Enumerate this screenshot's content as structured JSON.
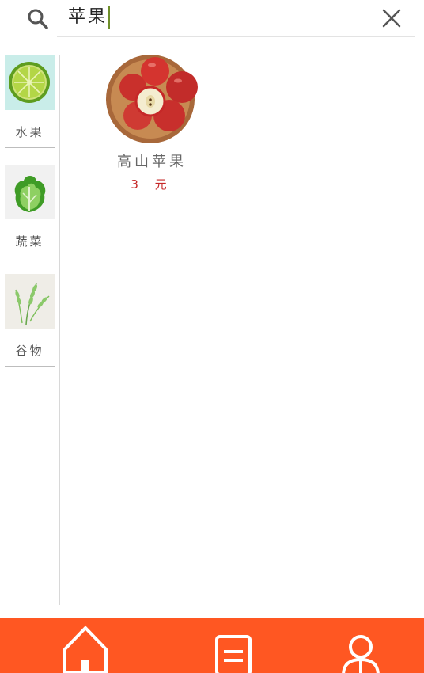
{
  "search": {
    "query": "苹果"
  },
  "sidebar": {
    "items": [
      {
        "label": "水果",
        "icon": "lime-slice-image"
      },
      {
        "label": "蔬菜",
        "icon": "lettuce-image"
      },
      {
        "label": "谷物",
        "icon": "wheat-image"
      }
    ]
  },
  "products": [
    {
      "name": "高山苹果",
      "price": "3 元",
      "icon": "apple-bowl-image"
    }
  ],
  "colors": {
    "accent": "#ff5722",
    "price": "#c62828",
    "caret": "#6f8f2a"
  },
  "tabbar": {
    "tabs": [
      {
        "icon": "home-icon"
      },
      {
        "icon": "orders-icon"
      },
      {
        "icon": "user-icon"
      }
    ]
  }
}
